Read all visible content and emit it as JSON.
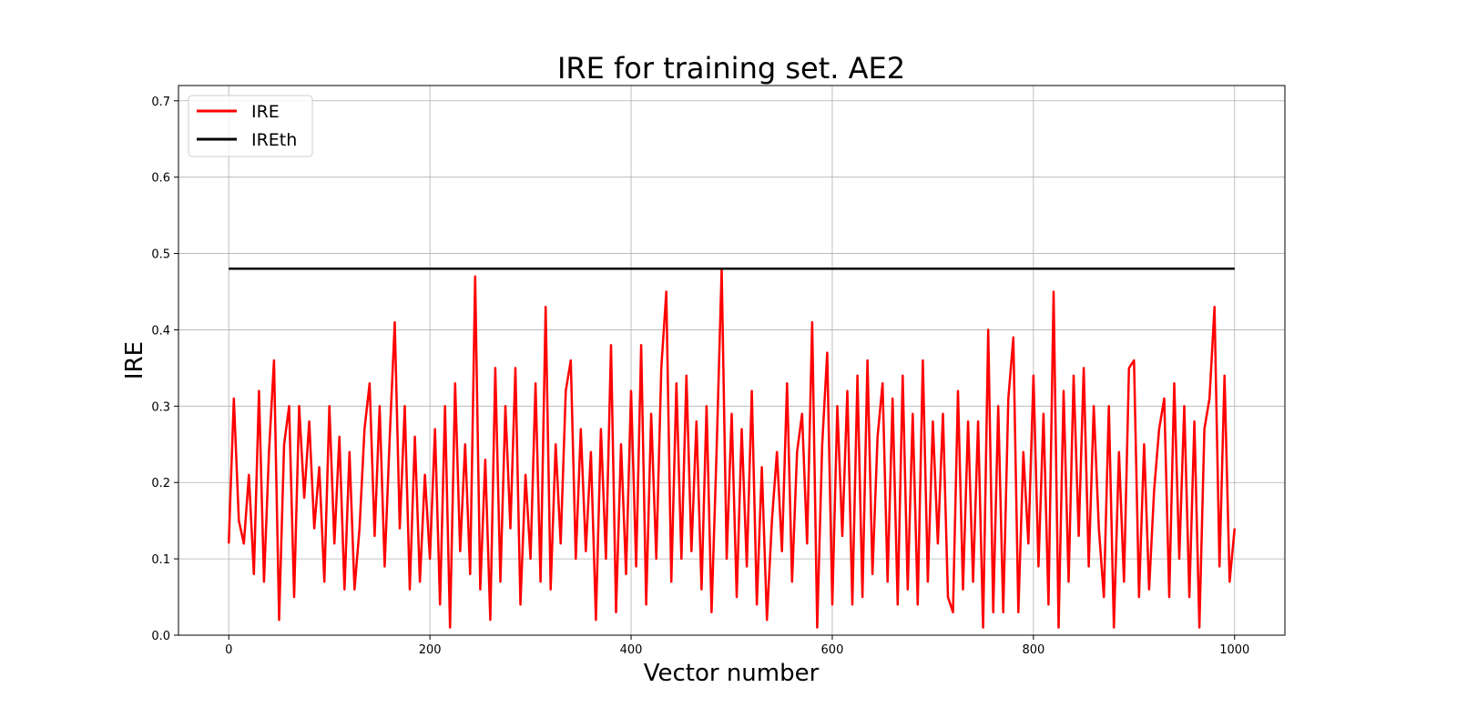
{
  "chart_data": {
    "type": "line",
    "title": "IRE for training set. AE2",
    "xlabel": "Vector number",
    "ylabel": "IRE",
    "xlim": [
      -50,
      1050
    ],
    "ylim": [
      0,
      0.72
    ],
    "xticks": [
      0,
      200,
      400,
      600,
      800,
      1000
    ],
    "xtick_labels": [
      "0",
      "200",
      "400",
      "600",
      "800",
      "1000"
    ],
    "yticks": [
      0,
      0.1,
      0.2,
      0.3,
      0.4,
      0.5,
      0.6,
      0.7
    ],
    "ytick_labels": [
      "0.0",
      "0.1",
      "0.2",
      "0.3",
      "0.4",
      "0.5",
      "0.6",
      "0.7"
    ],
    "grid": true,
    "legend_position": "top-left",
    "series": [
      {
        "name": "IRE",
        "color": "#ff0000",
        "x": [
          0,
          5,
          10,
          15,
          20,
          25,
          30,
          35,
          40,
          45,
          50,
          55,
          60,
          65,
          70,
          75,
          80,
          85,
          90,
          95,
          100,
          105,
          110,
          115,
          120,
          125,
          130,
          135,
          140,
          145,
          150,
          155,
          160,
          165,
          170,
          175,
          180,
          185,
          190,
          195,
          200,
          205,
          210,
          215,
          220,
          225,
          230,
          235,
          240,
          245,
          250,
          255,
          260,
          265,
          270,
          275,
          280,
          285,
          290,
          295,
          300,
          305,
          310,
          315,
          320,
          325,
          330,
          335,
          340,
          345,
          350,
          355,
          360,
          365,
          370,
          375,
          380,
          385,
          390,
          395,
          400,
          405,
          410,
          415,
          420,
          425,
          430,
          435,
          440,
          445,
          450,
          455,
          460,
          465,
          470,
          475,
          480,
          485,
          490,
          495,
          500,
          505,
          510,
          515,
          520,
          525,
          530,
          535,
          540,
          545,
          550,
          555,
          560,
          565,
          570,
          575,
          580,
          585,
          590,
          595,
          600,
          605,
          610,
          615,
          620,
          625,
          630,
          635,
          640,
          645,
          650,
          655,
          660,
          665,
          670,
          675,
          680,
          685,
          690,
          695,
          700,
          705,
          710,
          715,
          720,
          725,
          730,
          735,
          740,
          745,
          750,
          755,
          760,
          765,
          770,
          775,
          780,
          785,
          790,
          795,
          800,
          805,
          810,
          815,
          820,
          825,
          830,
          835,
          840,
          845,
          850,
          855,
          860,
          865,
          870,
          875,
          880,
          885,
          890,
          895,
          900,
          905,
          910,
          915,
          920,
          925,
          930,
          935,
          940,
          945,
          950,
          955,
          960,
          965,
          970,
          975,
          980,
          985,
          990,
          995,
          1000
        ],
        "y": [
          0.12,
          0.31,
          0.15,
          0.12,
          0.21,
          0.08,
          0.32,
          0.07,
          0.24,
          0.36,
          0.02,
          0.25,
          0.3,
          0.05,
          0.3,
          0.18,
          0.28,
          0.14,
          0.22,
          0.07,
          0.3,
          0.12,
          0.26,
          0.06,
          0.24,
          0.06,
          0.14,
          0.27,
          0.33,
          0.13,
          0.3,
          0.09,
          0.26,
          0.41,
          0.14,
          0.3,
          0.06,
          0.26,
          0.07,
          0.21,
          0.1,
          0.27,
          0.04,
          0.3,
          0.01,
          0.33,
          0.11,
          0.25,
          0.08,
          0.47,
          0.06,
          0.23,
          0.02,
          0.35,
          0.07,
          0.3,
          0.14,
          0.35,
          0.04,
          0.21,
          0.1,
          0.33,
          0.07,
          0.43,
          0.06,
          0.25,
          0.12,
          0.32,
          0.36,
          0.1,
          0.27,
          0.11,
          0.24,
          0.02,
          0.27,
          0.1,
          0.38,
          0.03,
          0.25,
          0.08,
          0.32,
          0.09,
          0.38,
          0.04,
          0.29,
          0.1,
          0.35,
          0.45,
          0.07,
          0.33,
          0.1,
          0.34,
          0.11,
          0.28,
          0.06,
          0.3,
          0.03,
          0.24,
          0.48,
          0.1,
          0.29,
          0.05,
          0.27,
          0.09,
          0.32,
          0.04,
          0.22,
          0.02,
          0.15,
          0.24,
          0.11,
          0.33,
          0.07,
          0.24,
          0.29,
          0.12,
          0.41,
          0.01,
          0.25,
          0.37,
          0.04,
          0.3,
          0.13,
          0.32,
          0.04,
          0.34,
          0.05,
          0.36,
          0.08,
          0.26,
          0.33,
          0.07,
          0.31,
          0.04,
          0.34,
          0.06,
          0.29,
          0.04,
          0.36,
          0.07,
          0.28,
          0.12,
          0.29,
          0.05,
          0.03,
          0.32,
          0.06,
          0.28,
          0.07,
          0.28,
          0.01,
          0.4,
          0.03,
          0.3,
          0.03,
          0.31,
          0.39,
          0.03,
          0.24,
          0.12,
          0.34,
          0.09,
          0.29,
          0.04,
          0.45,
          0.01,
          0.32,
          0.07,
          0.34,
          0.13,
          0.35,
          0.09,
          0.3,
          0.14,
          0.05,
          0.3,
          0.01,
          0.24,
          0.07,
          0.35,
          0.36,
          0.05,
          0.25,
          0.06,
          0.19,
          0.27,
          0.31,
          0.05,
          0.33,
          0.1,
          0.3,
          0.05,
          0.28,
          0.01,
          0.27,
          0.31,
          0.43,
          0.09,
          0.34,
          0.07,
          0.14
        ]
      },
      {
        "name": "IREth",
        "color": "#000000",
        "x": [
          0,
          1000
        ],
        "y": [
          0.48,
          0.48
        ]
      }
    ]
  }
}
